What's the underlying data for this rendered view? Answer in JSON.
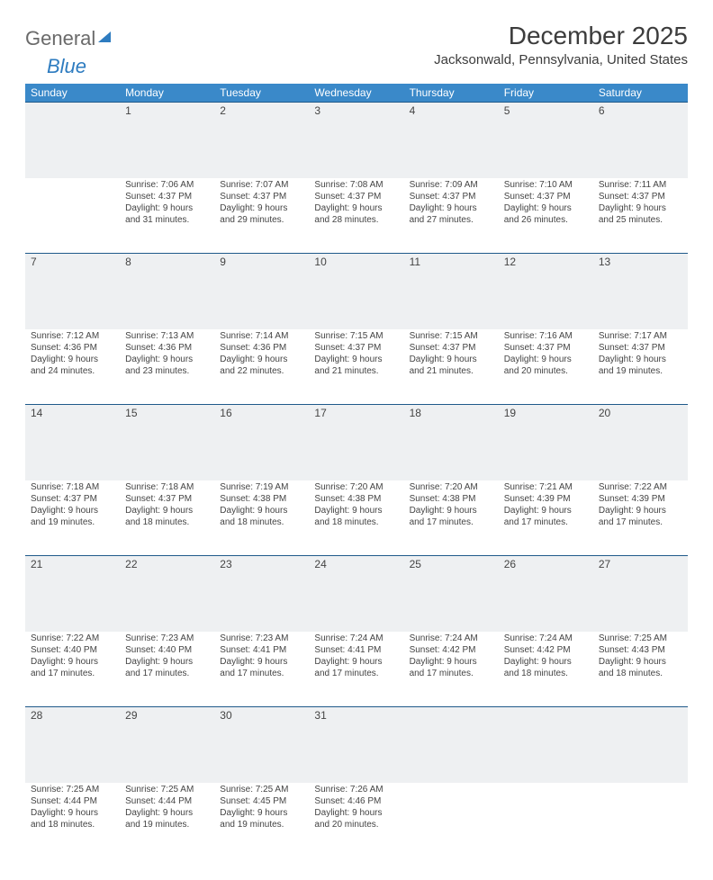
{
  "brand": {
    "part1": "General",
    "part2": "Blue"
  },
  "title": "December 2025",
  "location": "Jacksonwald, Pennsylvania, United States",
  "colors": {
    "header_bg": "#3a89c9",
    "header_text": "#ffffff",
    "daynum_bg": "#eef0f2",
    "row_border": "#1f5a8a",
    "text": "#444",
    "logo_gray": "#6a6a6a",
    "logo_blue": "#2e7cc0"
  },
  "daynames": [
    "Sunday",
    "Monday",
    "Tuesday",
    "Wednesday",
    "Thursday",
    "Friday",
    "Saturday"
  ],
  "weeks": [
    [
      {
        "num": "",
        "lines": []
      },
      {
        "num": "1",
        "lines": [
          "Sunrise: 7:06 AM",
          "Sunset: 4:37 PM",
          "Daylight: 9 hours and 31 minutes."
        ]
      },
      {
        "num": "2",
        "lines": [
          "Sunrise: 7:07 AM",
          "Sunset: 4:37 PM",
          "Daylight: 9 hours and 29 minutes."
        ]
      },
      {
        "num": "3",
        "lines": [
          "Sunrise: 7:08 AM",
          "Sunset: 4:37 PM",
          "Daylight: 9 hours and 28 minutes."
        ]
      },
      {
        "num": "4",
        "lines": [
          "Sunrise: 7:09 AM",
          "Sunset: 4:37 PM",
          "Daylight: 9 hours and 27 minutes."
        ]
      },
      {
        "num": "5",
        "lines": [
          "Sunrise: 7:10 AM",
          "Sunset: 4:37 PM",
          "Daylight: 9 hours and 26 minutes."
        ]
      },
      {
        "num": "6",
        "lines": [
          "Sunrise: 7:11 AM",
          "Sunset: 4:37 PM",
          "Daylight: 9 hours and 25 minutes."
        ]
      }
    ],
    [
      {
        "num": "7",
        "lines": [
          "Sunrise: 7:12 AM",
          "Sunset: 4:36 PM",
          "Daylight: 9 hours and 24 minutes."
        ]
      },
      {
        "num": "8",
        "lines": [
          "Sunrise: 7:13 AM",
          "Sunset: 4:36 PM",
          "Daylight: 9 hours and 23 minutes."
        ]
      },
      {
        "num": "9",
        "lines": [
          "Sunrise: 7:14 AM",
          "Sunset: 4:36 PM",
          "Daylight: 9 hours and 22 minutes."
        ]
      },
      {
        "num": "10",
        "lines": [
          "Sunrise: 7:15 AM",
          "Sunset: 4:37 PM",
          "Daylight: 9 hours and 21 minutes."
        ]
      },
      {
        "num": "11",
        "lines": [
          "Sunrise: 7:15 AM",
          "Sunset: 4:37 PM",
          "Daylight: 9 hours and 21 minutes."
        ]
      },
      {
        "num": "12",
        "lines": [
          "Sunrise: 7:16 AM",
          "Sunset: 4:37 PM",
          "Daylight: 9 hours and 20 minutes."
        ]
      },
      {
        "num": "13",
        "lines": [
          "Sunrise: 7:17 AM",
          "Sunset: 4:37 PM",
          "Daylight: 9 hours and 19 minutes."
        ]
      }
    ],
    [
      {
        "num": "14",
        "lines": [
          "Sunrise: 7:18 AM",
          "Sunset: 4:37 PM",
          "Daylight: 9 hours and 19 minutes."
        ]
      },
      {
        "num": "15",
        "lines": [
          "Sunrise: 7:18 AM",
          "Sunset: 4:37 PM",
          "Daylight: 9 hours and 18 minutes."
        ]
      },
      {
        "num": "16",
        "lines": [
          "Sunrise: 7:19 AM",
          "Sunset: 4:38 PM",
          "Daylight: 9 hours and 18 minutes."
        ]
      },
      {
        "num": "17",
        "lines": [
          "Sunrise: 7:20 AM",
          "Sunset: 4:38 PM",
          "Daylight: 9 hours and 18 minutes."
        ]
      },
      {
        "num": "18",
        "lines": [
          "Sunrise: 7:20 AM",
          "Sunset: 4:38 PM",
          "Daylight: 9 hours and 17 minutes."
        ]
      },
      {
        "num": "19",
        "lines": [
          "Sunrise: 7:21 AM",
          "Sunset: 4:39 PM",
          "Daylight: 9 hours and 17 minutes."
        ]
      },
      {
        "num": "20",
        "lines": [
          "Sunrise: 7:22 AM",
          "Sunset: 4:39 PM",
          "Daylight: 9 hours and 17 minutes."
        ]
      }
    ],
    [
      {
        "num": "21",
        "lines": [
          "Sunrise: 7:22 AM",
          "Sunset: 4:40 PM",
          "Daylight: 9 hours and 17 minutes."
        ]
      },
      {
        "num": "22",
        "lines": [
          "Sunrise: 7:23 AM",
          "Sunset: 4:40 PM",
          "Daylight: 9 hours and 17 minutes."
        ]
      },
      {
        "num": "23",
        "lines": [
          "Sunrise: 7:23 AM",
          "Sunset: 4:41 PM",
          "Daylight: 9 hours and 17 minutes."
        ]
      },
      {
        "num": "24",
        "lines": [
          "Sunrise: 7:24 AM",
          "Sunset: 4:41 PM",
          "Daylight: 9 hours and 17 minutes."
        ]
      },
      {
        "num": "25",
        "lines": [
          "Sunrise: 7:24 AM",
          "Sunset: 4:42 PM",
          "Daylight: 9 hours and 17 minutes."
        ]
      },
      {
        "num": "26",
        "lines": [
          "Sunrise: 7:24 AM",
          "Sunset: 4:42 PM",
          "Daylight: 9 hours and 18 minutes."
        ]
      },
      {
        "num": "27",
        "lines": [
          "Sunrise: 7:25 AM",
          "Sunset: 4:43 PM",
          "Daylight: 9 hours and 18 minutes."
        ]
      }
    ],
    [
      {
        "num": "28",
        "lines": [
          "Sunrise: 7:25 AM",
          "Sunset: 4:44 PM",
          "Daylight: 9 hours and 18 minutes."
        ]
      },
      {
        "num": "29",
        "lines": [
          "Sunrise: 7:25 AM",
          "Sunset: 4:44 PM",
          "Daylight: 9 hours and 19 minutes."
        ]
      },
      {
        "num": "30",
        "lines": [
          "Sunrise: 7:25 AM",
          "Sunset: 4:45 PM",
          "Daylight: 9 hours and 19 minutes."
        ]
      },
      {
        "num": "31",
        "lines": [
          "Sunrise: 7:26 AM",
          "Sunset: 4:46 PM",
          "Daylight: 9 hours and 20 minutes."
        ]
      },
      {
        "num": "",
        "lines": []
      },
      {
        "num": "",
        "lines": []
      },
      {
        "num": "",
        "lines": []
      }
    ]
  ]
}
